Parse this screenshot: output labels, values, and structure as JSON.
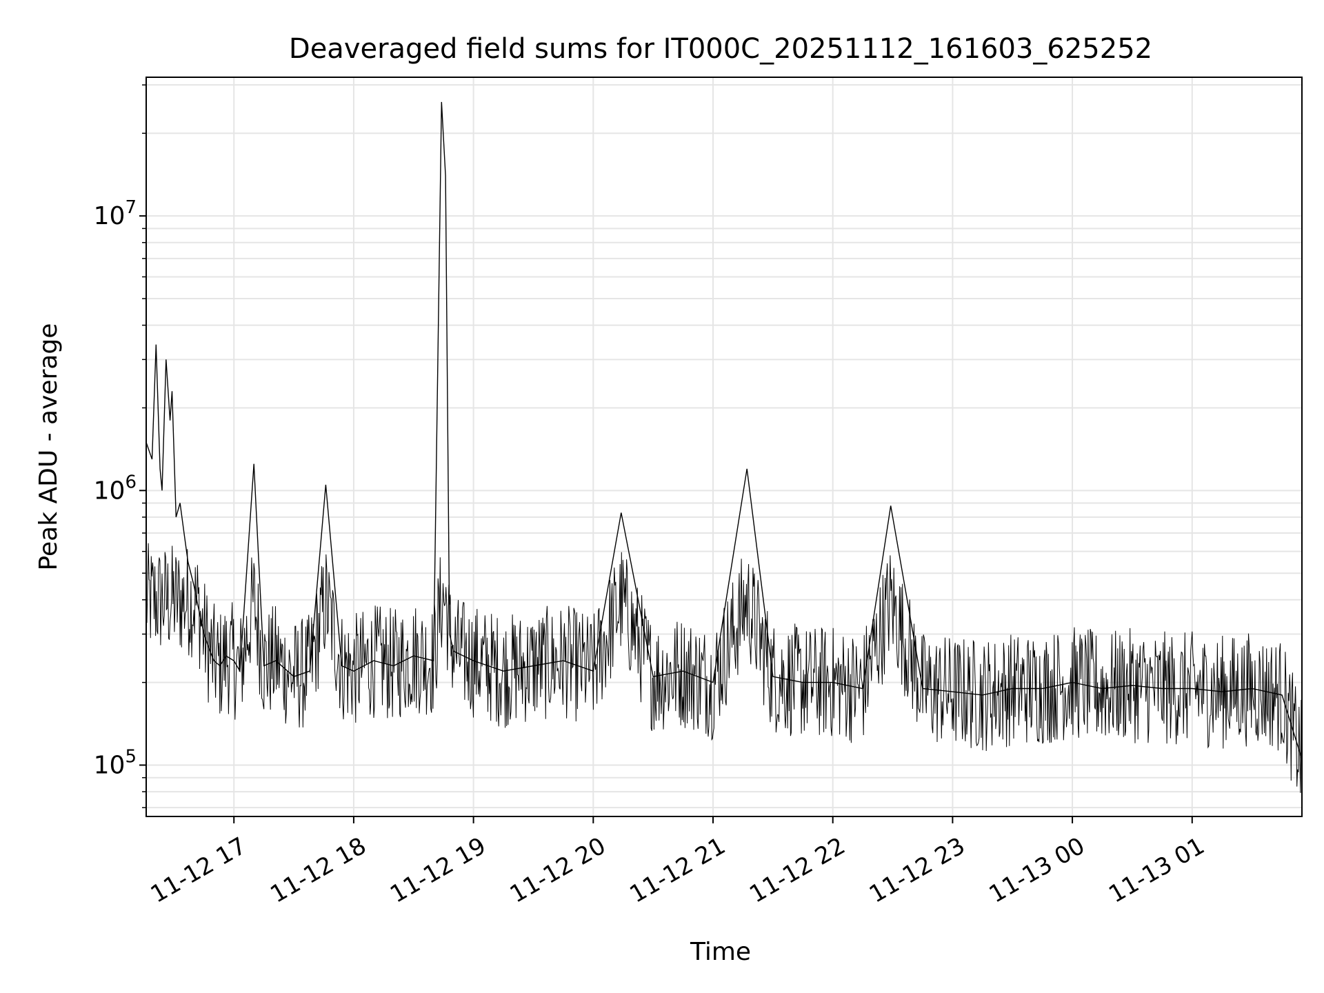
{
  "chart_data": {
    "type": "line",
    "title": "Deaveraged field sums for IT000C_20251112_161603_625252",
    "xlabel": "Time",
    "ylabel": "Peak ADU - average",
    "y_scale": "log",
    "ylim": [
      65000,
      32000000
    ],
    "xlim": [
      "2025-11-12 16:16:03",
      "2025-11-13 01:55:00"
    ],
    "x_ticks": [
      {
        "t": "2025-11-12 17:00",
        "label": "11-12 17"
      },
      {
        "t": "2025-11-12 18:00",
        "label": "11-12 18"
      },
      {
        "t": "2025-11-12 19:00",
        "label": "11-12 19"
      },
      {
        "t": "2025-11-12 20:00",
        "label": "11-12 20"
      },
      {
        "t": "2025-11-12 21:00",
        "label": "11-12 21"
      },
      {
        "t": "2025-11-12 22:00",
        "label": "11-12 22"
      },
      {
        "t": "2025-11-12 23:00",
        "label": "11-12 23"
      },
      {
        "t": "2025-11-13 00:00",
        "label": "11-13 00"
      },
      {
        "t": "2025-11-13 01:00",
        "label": "11-13 01"
      }
    ],
    "y_ticks": [
      {
        "value": 100000,
        "base": "10",
        "exp": "5"
      },
      {
        "value": 1000000,
        "base": "10",
        "exp": "6"
      },
      {
        "value": 10000000,
        "base": "10",
        "exp": "7"
      }
    ],
    "grid": true,
    "grid_minor": true,
    "line_color": "#000000",
    "grid_color": "#e5e5e5",
    "series": [
      {
        "x": [
          "2025-11-12 16:16",
          "2025-11-12 16:19",
          "2025-11-12 16:21",
          "2025-11-12 16:23",
          "2025-11-12 16:24",
          "2025-11-12 16:26",
          "2025-11-12 16:28",
          "2025-11-12 16:29",
          "2025-11-12 16:31",
          "2025-11-12 16:33",
          "2025-11-12 16:35",
          "2025-11-12 16:37",
          "2025-11-12 16:40",
          "2025-11-12 16:42",
          "2025-11-12 16:45",
          "2025-11-12 16:48",
          "2025-11-12 16:50",
          "2025-11-12 16:53",
          "2025-11-12 16:56",
          "2025-11-12 17:00",
          "2025-11-12 17:03",
          "2025-11-12 17:10",
          "2025-11-12 17:15",
          "2025-11-12 17:21",
          "2025-11-12 17:30",
          "2025-11-12 17:38",
          "2025-11-12 17:46",
          "2025-11-12 17:54",
          "2025-11-12 18:00",
          "2025-11-12 18:10",
          "2025-11-12 18:20",
          "2025-11-12 18:30",
          "2025-11-12 18:40",
          "2025-11-12 18:44",
          "2025-11-12 18:46",
          "2025-11-12 18:48",
          "2025-11-12 18:50",
          "2025-11-12 19:00",
          "2025-11-12 19:15",
          "2025-11-12 19:30",
          "2025-11-12 19:45",
          "2025-11-12 20:00",
          "2025-11-12 20:14",
          "2025-11-12 20:30",
          "2025-11-12 20:45",
          "2025-11-12 21:00",
          "2025-11-12 21:17",
          "2025-11-12 21:30",
          "2025-11-12 21:45",
          "2025-11-12 22:00",
          "2025-11-12 22:15",
          "2025-11-12 22:29",
          "2025-11-12 22:45",
          "2025-11-12 23:00",
          "2025-11-12 23:15",
          "2025-11-12 23:30",
          "2025-11-12 23:45",
          "2025-11-13 00:00",
          "2025-11-13 00:15",
          "2025-11-13 00:30",
          "2025-11-13 00:45",
          "2025-11-13 01:00",
          "2025-11-13 01:15",
          "2025-11-13 01:30",
          "2025-11-13 01:45",
          "2025-11-13 01:55"
        ],
        "values": [
          1500000,
          1300000,
          3400000,
          1200000,
          1000000,
          3000000,
          1800000,
          2300000,
          800000,
          900000,
          700000,
          550000,
          450000,
          380000,
          300000,
          260000,
          240000,
          230000,
          250000,
          240000,
          220000,
          1250000,
          230000,
          240000,
          210000,
          220000,
          1050000,
          230000,
          220000,
          240000,
          230000,
          250000,
          240000,
          26000000,
          14000000,
          300000,
          260000,
          240000,
          220000,
          230000,
          240000,
          220000,
          830000,
          210000,
          220000,
          200000,
          1200000,
          210000,
          200000,
          200000,
          190000,
          880000,
          190000,
          185000,
          180000,
          190000,
          190000,
          200000,
          190000,
          195000,
          190000,
          190000,
          185000,
          190000,
          180000,
          105000
        ]
      }
    ]
  }
}
